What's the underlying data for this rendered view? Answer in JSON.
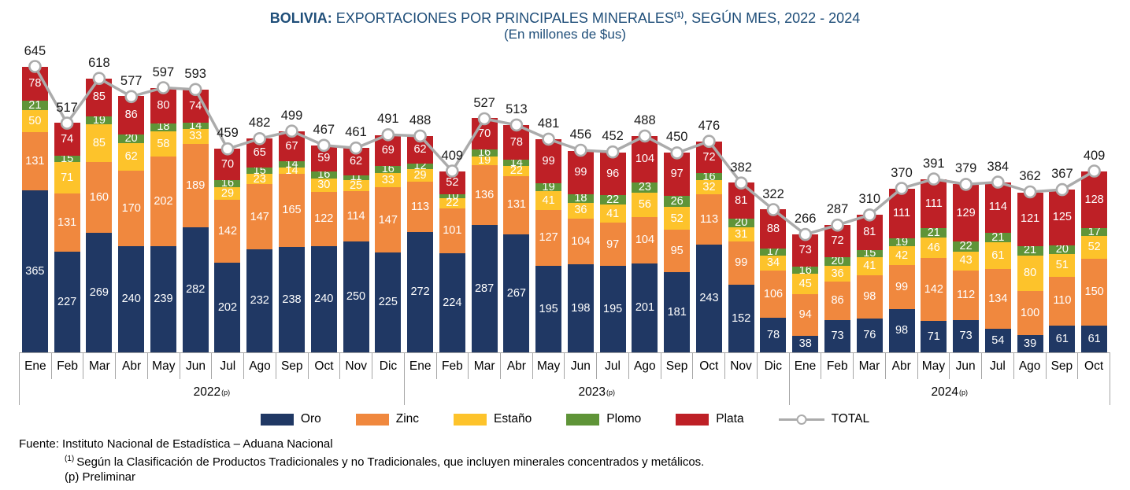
{
  "title": {
    "prefix": "BOLIVIA:",
    "main": " EXPORTACIONES POR PRINCIPALES MINERALES",
    "sup": "(1)",
    "tail": ", SEGÚN MES, 2022 - 2024",
    "subtitle": "(En millones de $us)"
  },
  "legend": {
    "total_label": "TOTAL"
  },
  "footer": {
    "source": "Fuente: Instituto Nacional de Estadística – Aduana Nacional",
    "note1_sup": "(1)",
    "note1_text": "Según la Clasificación de Productos Tradicionales y no Tradicionales, que incluyen minerales concentrados y metálicos.",
    "note2": "(p) Preliminar"
  },
  "chart_data": {
    "type": "bar",
    "stacked": true,
    "line_overlay": "TOTAL",
    "unit": "millones de $us",
    "ylim": [
      0,
      660
    ],
    "grid": false,
    "legend_position": "bottom",
    "categories": [
      "Ene",
      "Feb",
      "Mar",
      "Abr",
      "May",
      "Jun",
      "Jul",
      "Ago",
      "Sep",
      "Oct",
      "Nov",
      "Dic",
      "Ene",
      "Feb",
      "Mar",
      "Abr",
      "May",
      "Jun",
      "Jul",
      "Ago",
      "Sep",
      "Oct",
      "Nov",
      "Dic",
      "Ene",
      "Feb",
      "Mar",
      "Abr",
      "May",
      "Jun",
      "Jul",
      "Ago",
      "Sep",
      "Oct"
    ],
    "year_groups": [
      {
        "label": "2022",
        "sup": "(p)",
        "count": 12
      },
      {
        "label": "2023",
        "sup": "(p)",
        "count": 12
      },
      {
        "label": "2024",
        "sup": "(p)",
        "count": 10
      }
    ],
    "series": [
      {
        "name": "Oro",
        "key": "oro",
        "color": "#203864",
        "values": [
          365,
          227,
          269,
          240,
          239,
          282,
          202,
          232,
          238,
          240,
          250,
          225,
          272,
          224,
          287,
          267,
          195,
          198,
          195,
          201,
          181,
          243,
          152,
          78,
          38,
          73,
          76,
          98,
          71,
          73,
          54,
          39,
          61,
          61
        ]
      },
      {
        "name": "Zinc",
        "key": "zinc",
        "color": "#f0883e",
        "values": [
          131,
          131,
          160,
          170,
          202,
          189,
          142,
          147,
          165,
          122,
          114,
          147,
          113,
          101,
          136,
          131,
          127,
          104,
          97,
          104,
          95,
          113,
          99,
          106,
          94,
          86,
          98,
          99,
          142,
          112,
          134,
          100,
          110,
          150
        ]
      },
      {
        "name": "Estaño",
        "key": "estano",
        "color": "#fdc32b",
        "values": [
          50,
          71,
          85,
          62,
          58,
          33,
          29,
          23,
          14,
          30,
          25,
          33,
          29,
          22,
          19,
          22,
          41,
          36,
          41,
          56,
          52,
          32,
          31,
          34,
          45,
          36,
          41,
          42,
          46,
          43,
          61,
          80,
          51,
          52
        ]
      },
      {
        "name": "Plomo",
        "key": "plomo",
        "color": "#5f9438",
        "values": [
          21,
          15,
          19,
          20,
          18,
          14,
          16,
          15,
          14,
          16,
          11,
          16,
          12,
          10,
          16,
          14,
          19,
          18,
          22,
          23,
          26,
          16,
          20,
          17,
          16,
          20,
          15,
          19,
          21,
          22,
          21,
          21,
          20,
          17
        ]
      },
      {
        "name": "Plata",
        "key": "plata",
        "color": "#be2026",
        "values": [
          78,
          74,
          85,
          86,
          80,
          74,
          70,
          65,
          67,
          59,
          62,
          69,
          62,
          52,
          70,
          78,
          99,
          99,
          96,
          104,
          97,
          72,
          81,
          88,
          73,
          72,
          81,
          111,
          111,
          129,
          114,
          121,
          125,
          128
        ]
      }
    ],
    "total": {
      "name": "TOTAL",
      "color": "#ababab",
      "values": [
        645,
        517,
        618,
        577,
        597,
        593,
        459,
        482,
        499,
        467,
        461,
        491,
        488,
        409,
        527,
        513,
        481,
        456,
        452,
        488,
        450,
        476,
        382,
        322,
        266,
        287,
        310,
        370,
        391,
        379,
        384,
        362,
        367,
        409
      ]
    }
  }
}
